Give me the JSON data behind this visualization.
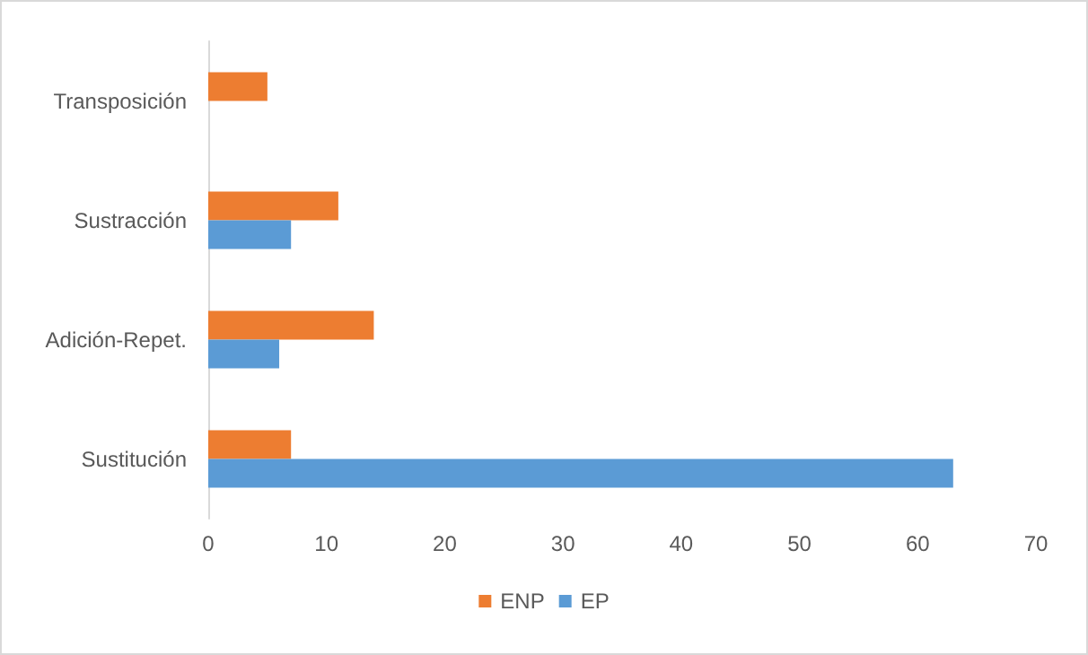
{
  "chart_data": {
    "type": "bar",
    "orientation": "horizontal",
    "categories": [
      "Transposición",
      "Sustracción",
      "Adición-Repet.",
      "Sustitución"
    ],
    "series": [
      {
        "name": "ENP",
        "color": "#ed7d31",
        "values": [
          5,
          11,
          14,
          7
        ]
      },
      {
        "name": "EP",
        "color": "#5b9bd5",
        "values": [
          null,
          7,
          6,
          63
        ]
      }
    ],
    "xlim": [
      0,
      70
    ],
    "xticks": [
      0,
      10,
      20,
      30,
      40,
      50,
      60,
      70
    ],
    "grid": false,
    "legend": "bottom"
  }
}
